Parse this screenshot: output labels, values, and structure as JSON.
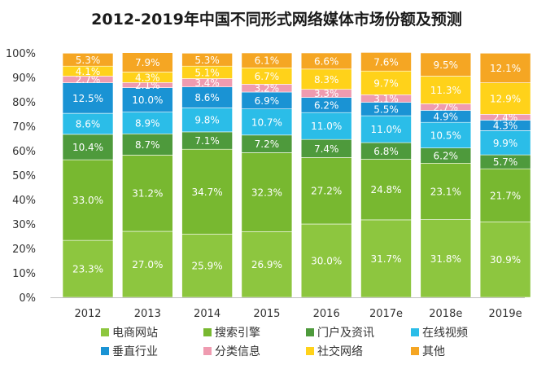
{
  "chart_data": {
    "type": "bar",
    "stacked": true,
    "title": "2012-2019年中国不同形式网络媒体市场份额及预测",
    "categories": [
      "2012",
      "2013",
      "2014",
      "2015",
      "2016",
      "2017e",
      "2018e",
      "2019e"
    ],
    "series": [
      {
        "name": "电商网站",
        "color": "#8dc63f",
        "values": [
          23.3,
          27.0,
          25.9,
          26.9,
          30.0,
          31.7,
          31.8,
          30.9
        ]
      },
      {
        "name": "搜索引擎",
        "color": "#78b830",
        "values": [
          33.0,
          31.2,
          34.7,
          32.3,
          27.2,
          24.8,
          23.1,
          21.7
        ]
      },
      {
        "name": "门户及资讯",
        "color": "#4e9a3c",
        "values": [
          10.4,
          8.7,
          7.1,
          7.2,
          7.4,
          6.8,
          6.2,
          5.7
        ]
      },
      {
        "name": "在线视频",
        "color": "#2bbde8",
        "values": [
          8.6,
          8.9,
          9.8,
          10.7,
          11.0,
          11.0,
          10.5,
          9.9
        ]
      },
      {
        "name": "垂直行业",
        "color": "#1a93d4",
        "values": [
          12.5,
          10.0,
          8.6,
          6.9,
          6.2,
          5.5,
          4.9,
          4.3
        ]
      },
      {
        "name": "分类信息",
        "color": "#ef9bb0",
        "values": [
          2.7,
          2.1,
          3.4,
          3.2,
          3.3,
          3.1,
          2.7,
          2.4
        ]
      },
      {
        "name": "社交网络",
        "color": "#ffd21a",
        "values": [
          4.1,
          4.3,
          5.1,
          6.7,
          8.3,
          9.7,
          11.3,
          12.9
        ]
      },
      {
        "name": "其他",
        "color": "#f5a623",
        "values": [
          5.3,
          7.9,
          5.3,
          6.1,
          6.6,
          7.6,
          9.5,
          12.1
        ]
      }
    ],
    "y_ticks": [
      "0%",
      "10%",
      "20%",
      "30%",
      "40%",
      "50%",
      "60%",
      "70%",
      "80%",
      "90%",
      "100%"
    ],
    "ylim": [
      0,
      100
    ],
    "grid": false,
    "legend_position": "bottom"
  }
}
